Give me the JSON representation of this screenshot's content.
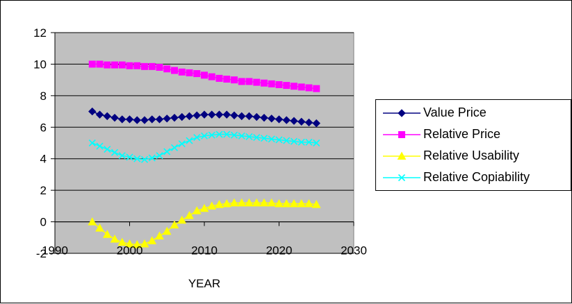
{
  "chart_data": {
    "type": "line",
    "title": "",
    "xlabel": "YEAR",
    "ylabel": "",
    "xlim": [
      1990,
      2030
    ],
    "ylim": [
      -2,
      12
    ],
    "xticks": [
      1990,
      2000,
      2010,
      2020,
      2030
    ],
    "yticks": [
      -2,
      0,
      2,
      4,
      6,
      8,
      10,
      12
    ],
    "grid": "horizontal",
    "legend_position": "right",
    "plot_background": "#c0c0c0",
    "x": [
      1995,
      1996,
      1997,
      1998,
      1999,
      2000,
      2001,
      2002,
      2003,
      2004,
      2005,
      2006,
      2007,
      2008,
      2009,
      2010,
      2011,
      2012,
      2013,
      2014,
      2015,
      2016,
      2017,
      2018,
      2019,
      2020,
      2021,
      2022,
      2023,
      2024,
      2025
    ],
    "series": [
      {
        "name": "Value Price",
        "color": "#000080",
        "marker": "diamond",
        "values": [
          7.0,
          6.8,
          6.7,
          6.6,
          6.5,
          6.5,
          6.45,
          6.45,
          6.5,
          6.5,
          6.55,
          6.6,
          6.65,
          6.7,
          6.75,
          6.8,
          6.8,
          6.8,
          6.8,
          6.75,
          6.7,
          6.7,
          6.65,
          6.6,
          6.55,
          6.5,
          6.45,
          6.4,
          6.35,
          6.3,
          6.25
        ]
      },
      {
        "name": "Relative Price",
        "color": "#ff00ff",
        "marker": "square",
        "values": [
          10.0,
          10.0,
          9.95,
          9.95,
          9.95,
          9.9,
          9.9,
          9.85,
          9.85,
          9.8,
          9.7,
          9.6,
          9.5,
          9.45,
          9.4,
          9.3,
          9.2,
          9.1,
          9.05,
          9.0,
          8.9,
          8.9,
          8.85,
          8.8,
          8.75,
          8.7,
          8.65,
          8.6,
          8.55,
          8.5,
          8.45
        ]
      },
      {
        "name": "Relative Usability",
        "color": "#ffff00",
        "marker": "triangle",
        "values": [
          0.0,
          -0.4,
          -0.8,
          -1.1,
          -1.3,
          -1.4,
          -1.45,
          -1.4,
          -1.2,
          -0.9,
          -0.6,
          -0.2,
          0.1,
          0.4,
          0.7,
          0.85,
          1.0,
          1.1,
          1.15,
          1.2,
          1.2,
          1.2,
          1.2,
          1.2,
          1.2,
          1.15,
          1.15,
          1.15,
          1.15,
          1.15,
          1.1
        ]
      },
      {
        "name": "Relative Copiability",
        "color": "#00ffff",
        "marker": "x",
        "values": [
          5.0,
          4.8,
          4.6,
          4.4,
          4.2,
          4.1,
          4.0,
          3.95,
          4.05,
          4.2,
          4.45,
          4.7,
          4.95,
          5.15,
          5.35,
          5.45,
          5.5,
          5.55,
          5.55,
          5.5,
          5.45,
          5.4,
          5.35,
          5.3,
          5.25,
          5.2,
          5.15,
          5.1,
          5.05,
          5.05,
          5.0
        ]
      }
    ]
  }
}
